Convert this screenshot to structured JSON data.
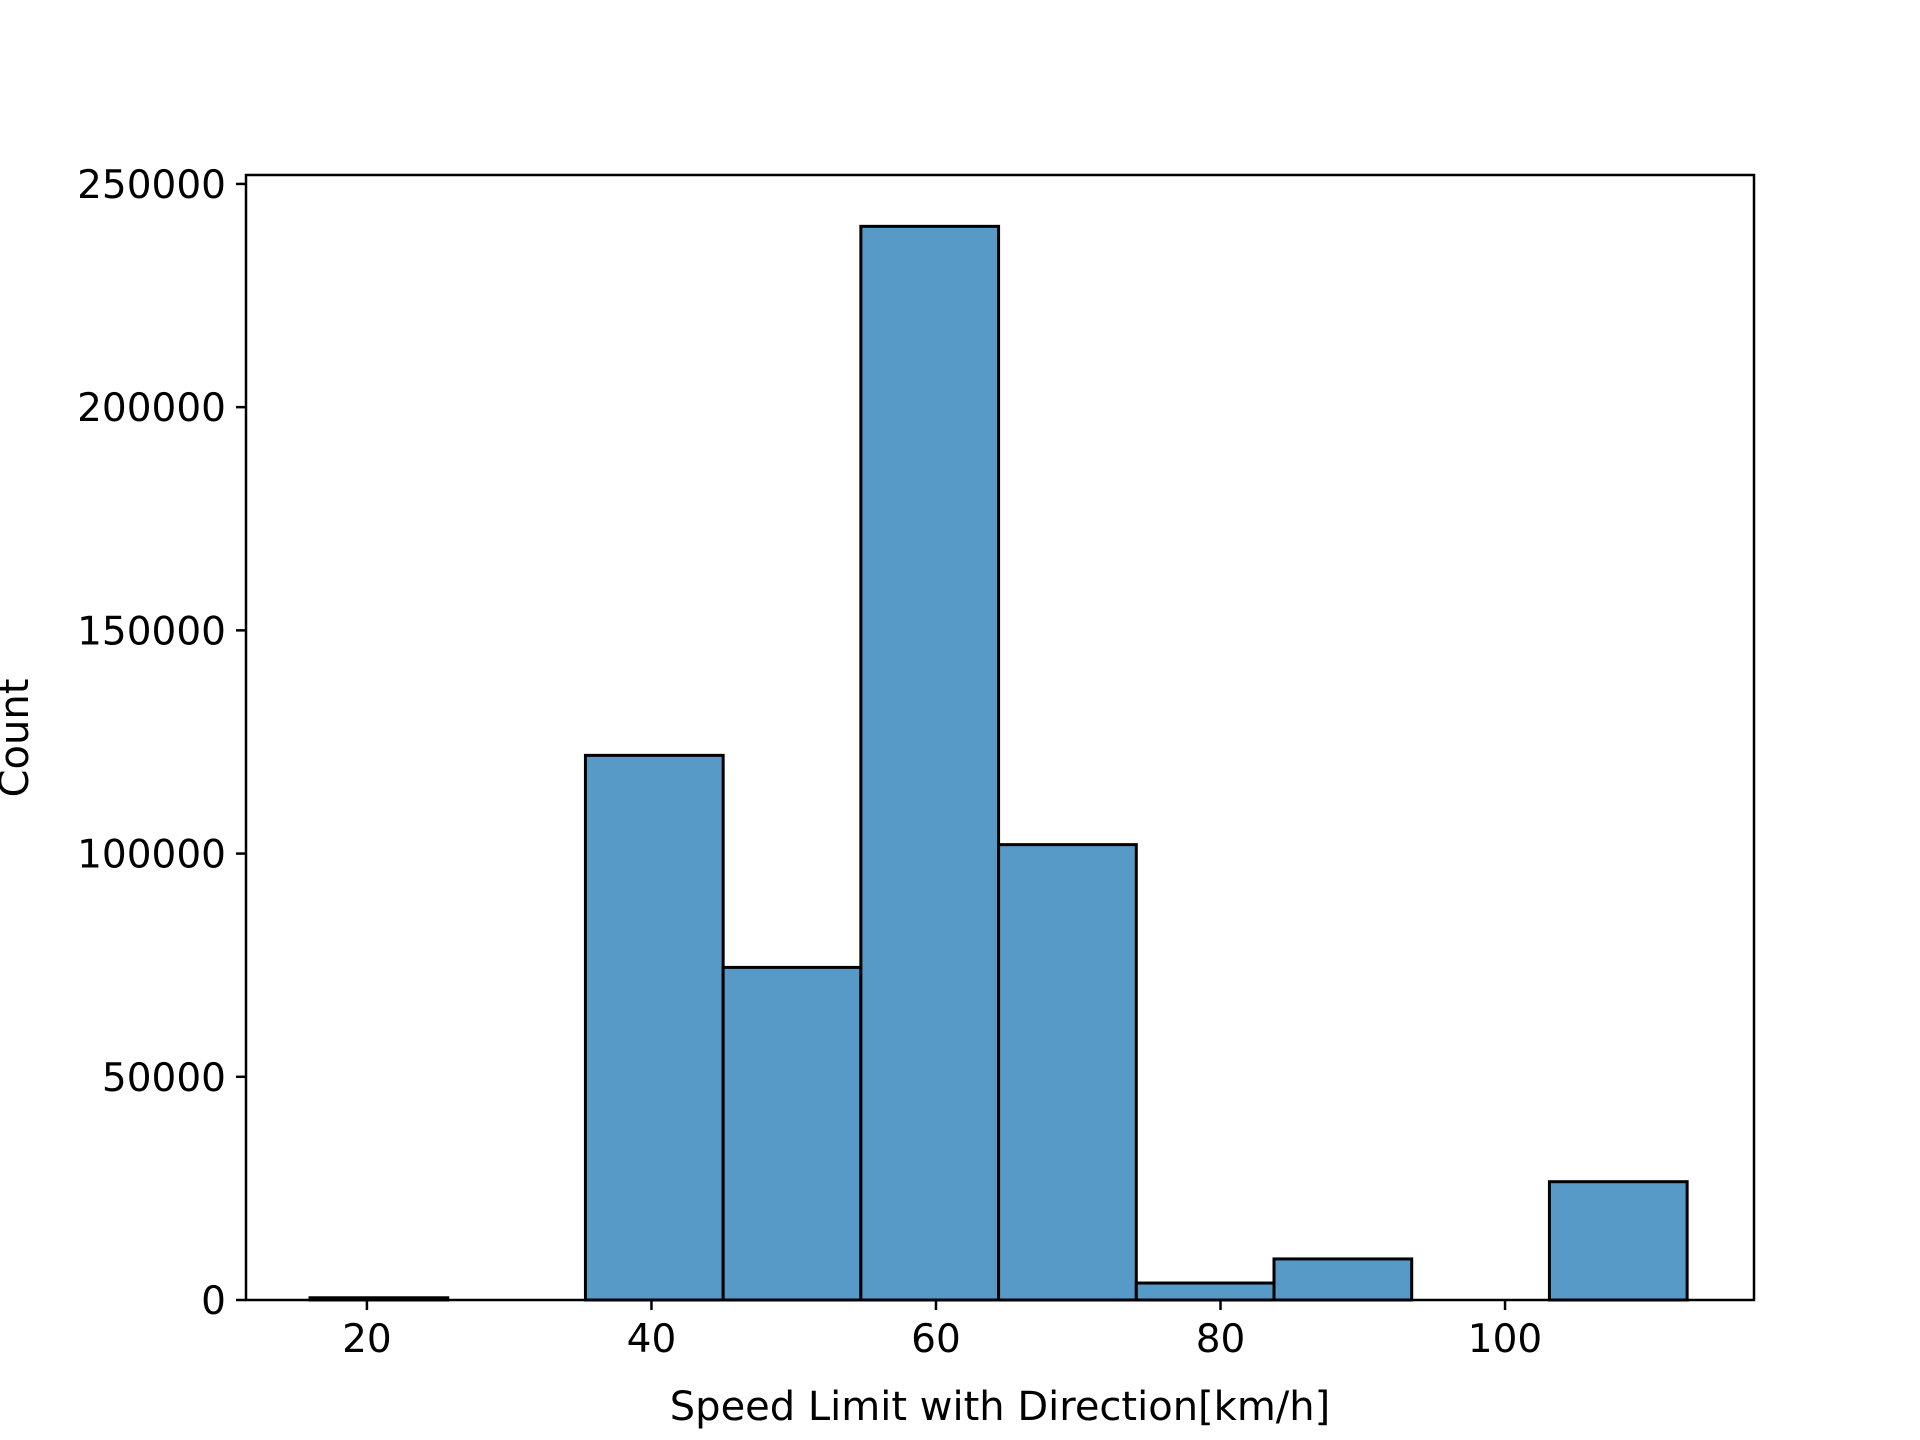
{
  "chart_data": {
    "type": "bar",
    "title": "",
    "xlabel": "Speed Limit with Direction[km/h]",
    "ylabel": "Count",
    "xlim": [
      11.5,
      117.5
    ],
    "ylim": [
      0,
      252000
    ],
    "xticks": [
      20,
      40,
      60,
      80,
      100
    ],
    "yticks": [
      0,
      50000,
      100000,
      150000,
      200000,
      250000
    ],
    "grid": false,
    "legend": "none",
    "bin_width": 9.68,
    "bins": [
      {
        "x0": 16.0,
        "x1": 25.68,
        "count": 500
      },
      {
        "x0": 25.68,
        "x1": 35.36,
        "count": 0
      },
      {
        "x0": 35.36,
        "x1": 45.04,
        "count": 122000
      },
      {
        "x0": 45.04,
        "x1": 54.72,
        "count": 74500
      },
      {
        "x0": 54.72,
        "x1": 64.4,
        "count": 240500
      },
      {
        "x0": 64.4,
        "x1": 74.08,
        "count": 102000
      },
      {
        "x0": 74.08,
        "x1": 83.76,
        "count": 3800
      },
      {
        "x0": 83.76,
        "x1": 93.44,
        "count": 9200
      },
      {
        "x0": 93.44,
        "x1": 103.12,
        "count": 0
      },
      {
        "x0": 103.12,
        "x1": 112.8,
        "count": 26500
      }
    ],
    "colors": {
      "bar_fill": "#5799c7",
      "bar_edge": "#000000",
      "axes": "#000000"
    }
  }
}
